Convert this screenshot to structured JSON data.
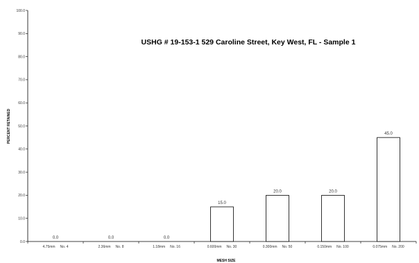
{
  "chart_data": {
    "type": "bar",
    "title": "USHG # 19-153-1 529 Caroline Street, Key West, FL - Sample 1",
    "xlabel": "MESH SIZE",
    "ylabel": "PERCENT RETAINED",
    "ylim": [
      0,
      100
    ],
    "yticks": [
      "0.0",
      "10.0",
      "20.0",
      "30.0",
      "40.0",
      "50.0",
      "60.0",
      "70.0",
      "80.0",
      "90.0",
      "100.0"
    ],
    "categories": [
      "4.75mm     No. 4",
      "2.36mm     No. 8",
      "1.18mm     No. 16",
      "0.600mm     No. 30",
      "0.300mm     No. 50",
      "0.150mm     No. 100",
      "0.075mm     No. 200"
    ],
    "values": [
      0.0,
      0.0,
      0.0,
      15.0,
      20.0,
      20.0,
      45.0
    ],
    "data_labels": [
      "0.0",
      "0.0",
      "0.0",
      "15.0",
      "20.0",
      "20.0",
      "45.0"
    ],
    "grid": false,
    "bar_fill": "#ffffff",
    "bar_stroke": "#000000"
  }
}
